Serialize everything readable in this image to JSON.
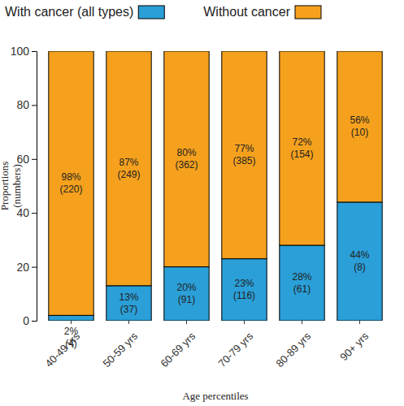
{
  "chart_data": {
    "type": "bar",
    "stacked": true,
    "data_labels": true,
    "legend": "top",
    "x_label": "Age percentiles",
    "y_label": "Proportions\n(numbers)",
    "categories": [
      "40-49 yrs",
      "50-59 yrs",
      "60-69 yrs",
      "70-79 yrs",
      "80-89 yrs",
      "90+ yrs"
    ],
    "ylim": [
      0,
      100
    ],
    "yticks": [
      0,
      20,
      40,
      60,
      80,
      100
    ],
    "series": [
      {
        "name": "With cancer (all types)",
        "color": "#2a9fd8",
        "values": [
          2,
          13,
          20,
          23,
          28,
          44
        ],
        "value_labels": [
          "2%",
          "13%",
          "20%",
          "23%",
          "28%",
          "44%"
        ],
        "count_labels": [
          "(4)",
          "(37)",
          "(91)",
          "(116)",
          "(61)",
          "(8)"
        ]
      },
      {
        "name": "Without cancer",
        "color": "#f6a11d",
        "values": [
          98,
          87,
          80,
          77,
          72,
          56
        ],
        "value_labels": [
          "98%",
          "87%",
          "80%",
          "77%",
          "72%",
          "56%"
        ],
        "count_labels": [
          "(220)",
          "(249)",
          "(362)",
          "(385)",
          "(154)",
          "(10)"
        ]
      }
    ]
  }
}
